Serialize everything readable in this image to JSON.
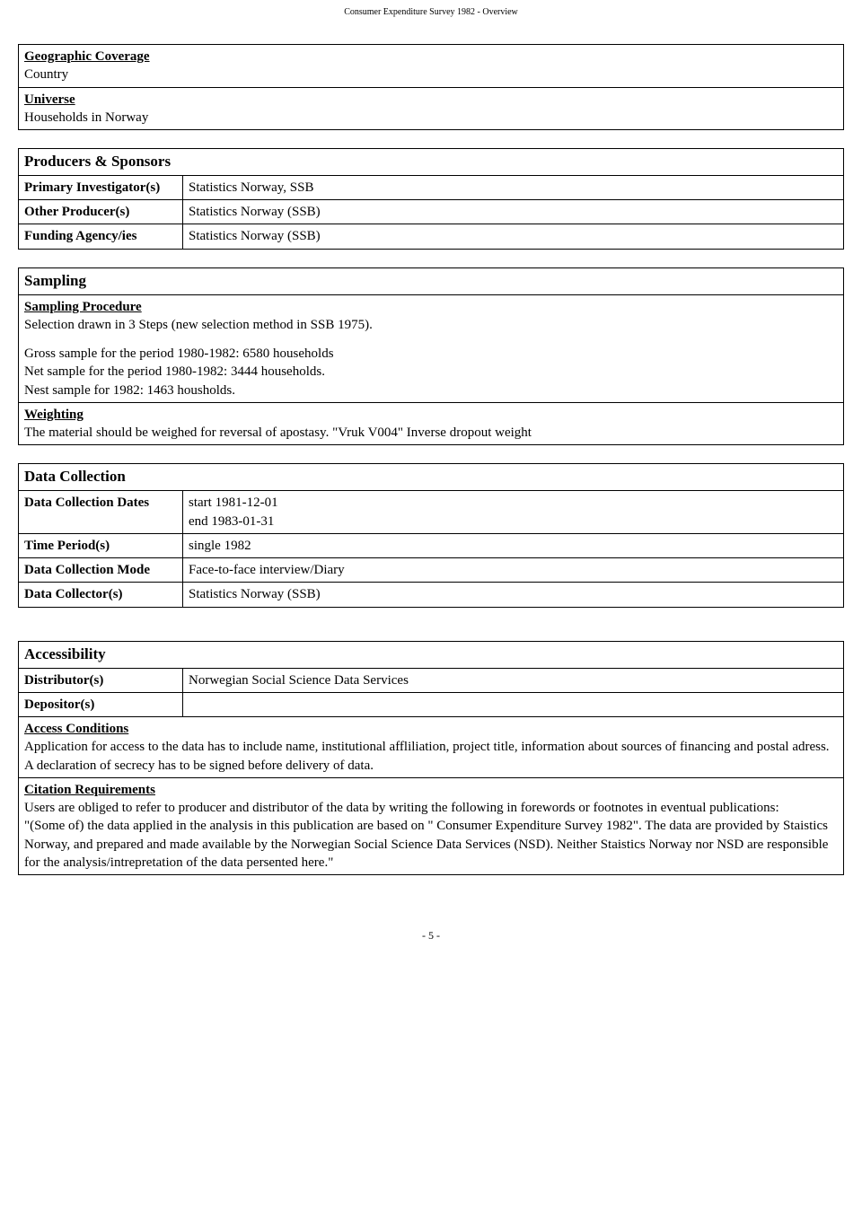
{
  "header": "Consumer Expenditure Survey 1982 - Overview",
  "footer": "- 5 -",
  "geo": {
    "heading": "Geographic Coverage",
    "value": "Country",
    "universe_heading": "Universe",
    "universe_value": "Households in Norway"
  },
  "producers": {
    "section": "Producers & Sponsors",
    "rows": [
      {
        "label": "Primary Investigator(s)",
        "value": "Statistics Norway, SSB"
      },
      {
        "label": "Other Producer(s)",
        "value": "Statistics Norway (SSB)"
      },
      {
        "label": "Funding Agency/ies",
        "value": "Statistics Norway (SSB)"
      }
    ]
  },
  "sampling": {
    "section": "Sampling",
    "proc_heading": "Sampling Procedure",
    "proc_line1": "Selection drawn in 3 Steps (new selection method in SSB 1975).",
    "proc_line2": "Gross sample for the period 1980-1982: 6580 households",
    "proc_line3": "Net sample for the period 1980-1982: 3444 households.",
    "proc_line4": "Nest sample for 1982: 1463 housholds.",
    "weight_heading": "Weighting",
    "weight_text": "The material should be weighed for reversal of apostasy. \"Vruk V004\" Inverse dropout weight"
  },
  "datacollection": {
    "section": "Data Collection",
    "rows": [
      {
        "label": "Data Collection Dates",
        "value": "start 1981-12-01\nend 1983-01-31"
      },
      {
        "label": "Time Period(s)",
        "value": "single 1982"
      },
      {
        "label": "Data Collection Mode",
        "value": "Face-to-face interview/Diary"
      },
      {
        "label": "Data Collector(s)",
        "value": "Statistics Norway (SSB)"
      }
    ]
  },
  "accessibility": {
    "section": "Accessibility",
    "rows": [
      {
        "label": "Distributor(s)",
        "value": "Norwegian Social Science Data Services"
      },
      {
        "label": "Depositor(s)",
        "value": ""
      }
    ],
    "access_heading": "Access Conditions",
    "access_text": "Application for access to the data has to include name, institutional affliliation, project title, information about sources of financing and postal adress. A declaration of secrecy has to be signed before delivery of data.",
    "citation_heading": "Citation Requirements",
    "citation_text": "Users are obliged to refer to producer and distributor of the data by writing the following in forewords or footnotes in eventual publications:\n\"(Some of) the data applied in the analysis in this publication are based on \" Consumer Expenditure Survey 1982\". The data are provided by Staistics Norway, and prepared and made available by the Norwegian Social Science Data Services (NSD). Neither Staistics Norway nor NSD are responsible for the analysis/intrepretation of the data persented here.\""
  }
}
